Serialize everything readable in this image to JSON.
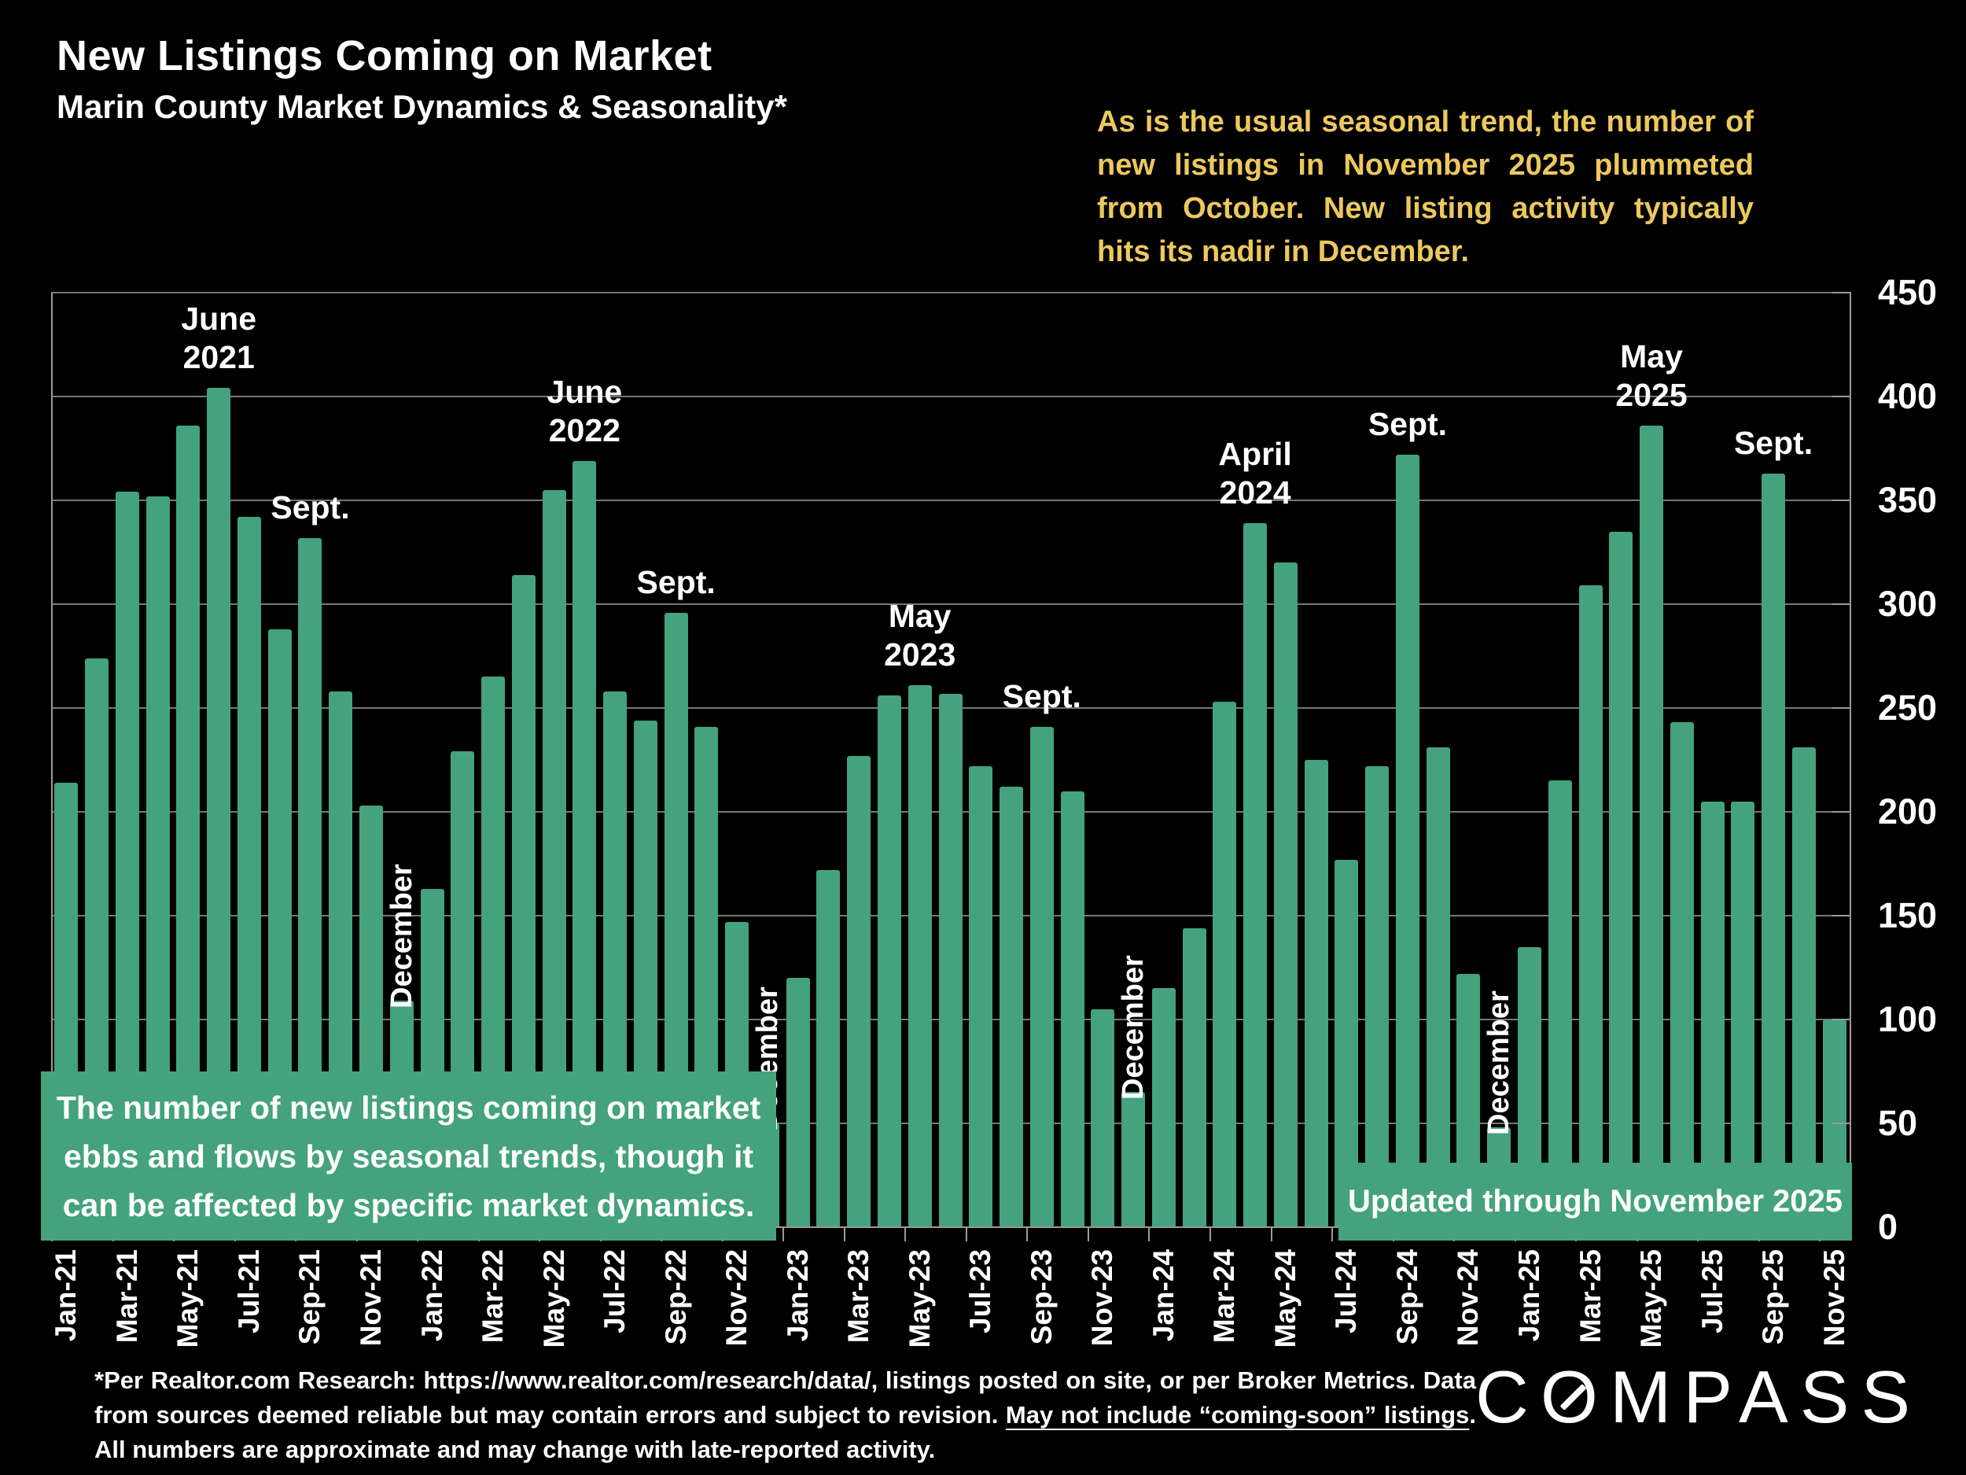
{
  "header": {
    "title": "New Listings Coming on Market",
    "subtitle": "Marin County Market Dynamics & Seasonality*",
    "annotation": "As is the usual seasonal trend, the number of new listings in November 2025 plummeted from October.  New listing activity typically hits its nadir in December."
  },
  "callout": "The number of new listings coming on market ebbs and flows by seasonal trends, though it can be affected by specific market dynamics.",
  "updated_note": "Updated through November 2025",
  "footnote": {
    "pre": "*Per Realtor.com Research:  https://www.realtor.com/research/data/, listings posted on site, or per Broker Metrics. Data from sources deemed reliable but may contain errors and subject to revision. ",
    "underlined": "May not include “coming-soon” listings",
    "post": ". All numbers are approximate and may change with late-reported activity."
  },
  "logo": {
    "brand": "COMPASS"
  },
  "colors": {
    "background": "#000000",
    "bar_green": "#44a27e",
    "box_green": "#44a27e",
    "annotation_yellow": "#ecc85e",
    "grid": "#767676",
    "axis": "#9a9a9a",
    "text": "#ffffff"
  },
  "chart_data": {
    "type": "bar",
    "title": "New Listings Coming on Market",
    "xlabel": "",
    "ylabel": "",
    "ylim": [
      0,
      450
    ],
    "y_ticks": [
      0,
      50,
      100,
      150,
      200,
      250,
      300,
      350,
      400,
      450
    ],
    "grid": true,
    "legend": "none",
    "x": [
      "Jan-21",
      "Feb-21",
      "Mar-21",
      "Apr-21",
      "May-21",
      "Jun-21",
      "Jul-21",
      "Aug-21",
      "Sep-21",
      "Oct-21",
      "Nov-21",
      "Dec-21",
      "Jan-22",
      "Feb-22",
      "Mar-22",
      "Apr-22",
      "May-22",
      "Jun-22",
      "Jul-22",
      "Aug-22",
      "Sep-22",
      "Oct-22",
      "Nov-22",
      "Dec-22",
      "Jan-23",
      "Feb-23",
      "Mar-23",
      "Apr-23",
      "May-23",
      "Jun-23",
      "Jul-23",
      "Aug-23",
      "Sep-23",
      "Oct-23",
      "Nov-23",
      "Dec-23",
      "Jan-24",
      "Feb-24",
      "Mar-24",
      "Apr-24",
      "May-24",
      "Jun-24",
      "Jul-24",
      "Aug-24",
      "Sep-24",
      "Oct-24",
      "Nov-24",
      "Dec-24",
      "Jan-25",
      "Feb-25",
      "Mar-25",
      "Apr-25",
      "May-25",
      "Jun-25",
      "Jul-25",
      "Aug-25",
      "Sep-25",
      "Oct-25",
      "Nov-25"
    ],
    "values": [
      214,
      274,
      354,
      352,
      386,
      404,
      342,
      288,
      332,
      258,
      203,
      109,
      163,
      229,
      265,
      314,
      355,
      369,
      258,
      244,
      296,
      241,
      147,
      50,
      120,
      172,
      227,
      256,
      261,
      257,
      222,
      212,
      241,
      210,
      105,
      65,
      115,
      144,
      253,
      339,
      320,
      225,
      177,
      222,
      372,
      231,
      122,
      48,
      135,
      215,
      309,
      335,
      386,
      243,
      205,
      205,
      363,
      231,
      100
    ],
    "x_label_every": 2,
    "peak_labels": [
      {
        "index": 5,
        "lines": [
          "June",
          "2021"
        ]
      },
      {
        "index": 8,
        "lines": [
          "Sept."
        ]
      },
      {
        "index": 17,
        "lines": [
          "June",
          "2022"
        ]
      },
      {
        "index": 20,
        "lines": [
          "Sept."
        ]
      },
      {
        "index": 28,
        "lines": [
          "May",
          "2023"
        ]
      },
      {
        "index": 32,
        "lines": [
          "Sept."
        ]
      },
      {
        "index": 39,
        "lines": [
          "April",
          "2024"
        ]
      },
      {
        "index": 44,
        "lines": [
          "Sept."
        ]
      },
      {
        "index": 52,
        "lines": [
          "May",
          "2025"
        ]
      },
      {
        "index": 56,
        "lines": [
          "Sept."
        ]
      }
    ],
    "december_label_text": "December",
    "december_label_indices": [
      11,
      23,
      35,
      47
    ]
  }
}
